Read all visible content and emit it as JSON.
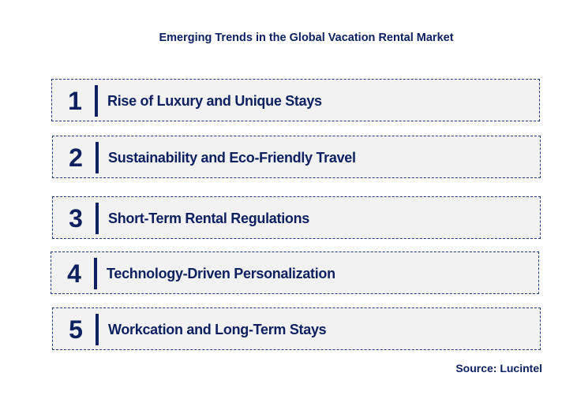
{
  "title": "Emerging Trends in the Global Vacation Rental Market",
  "items": [
    {
      "number": "1",
      "label": "Rise of Luxury and Unique Stays"
    },
    {
      "number": "2",
      "label": "Sustainability and Eco-Friendly Travel"
    },
    {
      "number": "3",
      "label": "Short-Term Rental Regulations"
    },
    {
      "number": "4",
      "label": "Technology-Driven Personalization"
    },
    {
      "number": "5",
      "label": "Workcation and Long-Term Stays"
    }
  ],
  "source": "Source: Lucintel",
  "colors": {
    "text": "#0d2161",
    "box_bg": "#f2f2f2"
  }
}
